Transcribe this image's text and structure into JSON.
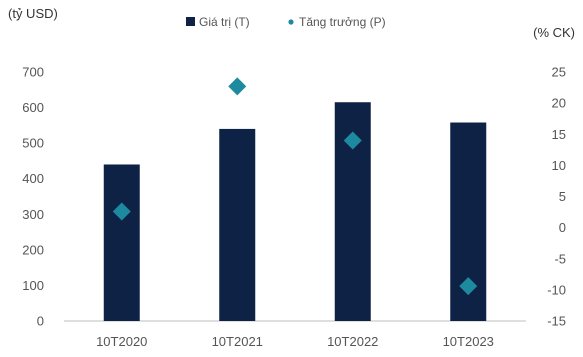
{
  "colors": {
    "bar": "#0d2245",
    "point": "#1e8aa0",
    "axis": "#bfbfbf",
    "text": "#555555"
  },
  "chart_data": {
    "type": "bar",
    "categories": [
      "10T2020",
      "10T2021",
      "10T2022",
      "10T2023"
    ],
    "series": [
      {
        "name": "Giá trị (T)",
        "type": "bar",
        "axis": "left",
        "values": [
          440,
          540,
          615,
          558
        ]
      },
      {
        "name": "Tăng trưởng (P)",
        "type": "scatter",
        "marker": "diamond",
        "axis": "right",
        "values": [
          2.6,
          22.7,
          14.0,
          -9.4
        ]
      }
    ],
    "y_left": {
      "label": "(tỷ USD)",
      "ylim": [
        0,
        700
      ],
      "ticks": [
        "0",
        "100",
        "200",
        "300",
        "400",
        "500",
        "600",
        "700"
      ]
    },
    "y_right": {
      "label": "(% CK)",
      "ylim": [
        -15,
        25
      ],
      "ticks": [
        "-15",
        "-10",
        "-5",
        "0",
        "5",
        "10",
        "15",
        "20",
        "25"
      ]
    },
    "legend": "top-center",
    "grid": false
  }
}
